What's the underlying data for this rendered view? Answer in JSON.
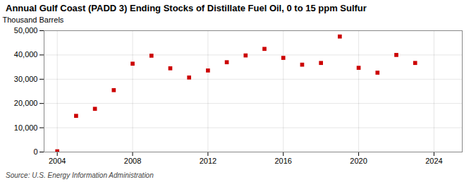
{
  "chart_data": {
    "type": "scatter",
    "title": "Annual Gulf Coast (PADD 3) Ending Stocks of Distillate Fuel Oil, 0 to 15 ppm Sulfur",
    "ylabel": "Thousand Barrels",
    "source": "Source: U.S. Energy Information Administration",
    "x": [
      2004,
      2005,
      2006,
      2007,
      2008,
      2009,
      2010,
      2011,
      2012,
      2013,
      2014,
      2015,
      2016,
      2017,
      2018,
      2019,
      2020,
      2021,
      2022,
      2023
    ],
    "values": [
      300,
      14900,
      17800,
      25500,
      36400,
      39700,
      34500,
      30700,
      33600,
      37000,
      39800,
      42500,
      38800,
      36000,
      36700,
      47600,
      34700,
      32700,
      40000,
      36700
    ],
    "color": "#cc0000",
    "marker": "square",
    "xlim": [
      2003.3,
      2025.5
    ],
    "xticks": [
      2004,
      2008,
      2012,
      2016,
      2020,
      2024
    ],
    "ylim": [
      0,
      50000
    ],
    "yticks": [
      0,
      {
        "value": 10000,
        "label": "10,000"
      },
      {
        "value": 20000,
        "label": "20,000"
      },
      {
        "value": 30000,
        "label": "30,000"
      },
      {
        "value": 40000,
        "label": "40,000"
      },
      {
        "value": 50000,
        "label": "50,000"
      }
    ],
    "grid": true
  }
}
